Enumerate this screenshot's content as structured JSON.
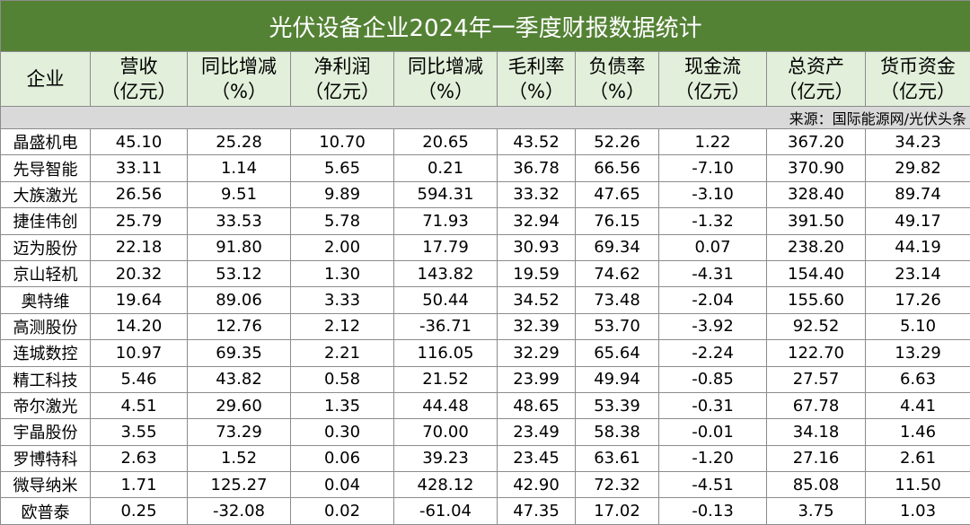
{
  "title": "光伏设备企业2024年一季度财报数据统计",
  "header": [
    [
      "企业"
    ],
    [
      "营收",
      "（亿元）"
    ],
    [
      "同比增减",
      "（%）"
    ],
    [
      "净利润",
      "（亿元）"
    ],
    [
      "同比增减",
      "（%）"
    ],
    [
      "毛利率",
      "（%）"
    ],
    [
      "负债率",
      "（%）"
    ],
    [
      "现金流",
      "（亿元）"
    ],
    [
      "总资产",
      "（亿元）"
    ],
    [
      "货币资金",
      "（亿元）"
    ]
  ],
  "source": "来源：国际能源网/光伏头条",
  "rows": [
    [
      "晶盛机电",
      "45.10",
      "25.28",
      "10.70",
      "20.65",
      "43.52",
      "52.26",
      "1.22",
      "367.20",
      "34.23"
    ],
    [
      "先导智能",
      "33.11",
      "1.14",
      "5.65",
      "0.21",
      "36.78",
      "66.56",
      "-7.10",
      "370.90",
      "29.82"
    ],
    [
      "大族激光",
      "26.56",
      "9.51",
      "9.89",
      "594.31",
      "33.32",
      "47.65",
      "-3.10",
      "328.40",
      "89.74"
    ],
    [
      "捷佳伟创",
      "25.79",
      "33.53",
      "5.78",
      "71.93",
      "32.94",
      "76.15",
      "-1.32",
      "391.50",
      "49.17"
    ],
    [
      "迈为股份",
      "22.18",
      "91.80",
      "2.00",
      "17.79",
      "30.93",
      "69.34",
      "0.07",
      "238.20",
      "44.19"
    ],
    [
      "京山轻机",
      "20.32",
      "53.12",
      "1.30",
      "143.82",
      "19.59",
      "74.62",
      "-4.31",
      "154.40",
      "23.14"
    ],
    [
      "奥特维",
      "19.64",
      "89.06",
      "3.33",
      "50.44",
      "34.52",
      "73.48",
      "-2.04",
      "155.60",
      "17.26"
    ],
    [
      "高测股份",
      "14.20",
      "12.76",
      "2.12",
      "-36.71",
      "32.39",
      "53.70",
      "-3.92",
      "92.52",
      "5.10"
    ],
    [
      "连城数控",
      "10.97",
      "69.35",
      "2.21",
      "116.05",
      "32.29",
      "65.64",
      "-2.24",
      "122.70",
      "13.29"
    ],
    [
      "精工科技",
      "5.46",
      "43.82",
      "0.58",
      "21.52",
      "23.99",
      "49.94",
      "-0.85",
      "27.57",
      "6.63"
    ],
    [
      "帝尔激光",
      "4.51",
      "29.60",
      "1.35",
      "44.48",
      "48.65",
      "53.39",
      "-0.31",
      "67.78",
      "4.41"
    ],
    [
      "宇晶股份",
      "3.55",
      "73.29",
      "0.30",
      "70.00",
      "23.49",
      "58.38",
      "-0.01",
      "34.18",
      "1.46"
    ],
    [
      "罗博特科",
      "2.63",
      "1.52",
      "0.06",
      "39.23",
      "23.45",
      "63.61",
      "-1.20",
      "27.16",
      "2.61"
    ],
    [
      "微导纳米",
      "1.71",
      "125.27",
      "0.04",
      "428.12",
      "42.90",
      "72.32",
      "-4.51",
      "85.08",
      "11.50"
    ],
    [
      "欧普泰",
      "0.25",
      "-32.08",
      "0.02",
      "-61.04",
      "47.35",
      "17.02",
      "-0.13",
      "3.75",
      "1.03"
    ]
  ]
}
